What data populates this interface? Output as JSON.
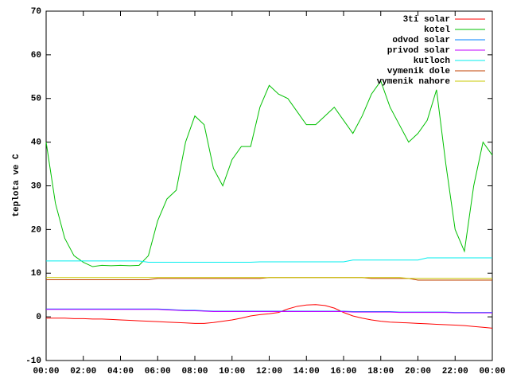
{
  "chart_data": {
    "type": "line",
    "ylabel": "teplota ve C",
    "x": [
      0,
      0.5,
      1,
      1.5,
      2,
      2.5,
      3,
      3.5,
      4,
      4.5,
      5,
      5.5,
      6,
      6.5,
      7,
      7.5,
      8,
      8.5,
      9,
      9.5,
      10,
      10.5,
      11,
      11.5,
      12,
      12.5,
      13,
      13.5,
      14,
      14.5,
      15,
      15.5,
      16,
      16.5,
      17,
      17.5,
      18,
      18.5,
      19,
      19.5,
      20,
      20.5,
      21,
      21.5,
      22,
      22.5,
      23,
      23.5,
      24
    ],
    "xlim": [
      0,
      24
    ],
    "xticks": [
      {
        "value": 0,
        "label": "00:00"
      },
      {
        "value": 2,
        "label": "02:00"
      },
      {
        "value": 4,
        "label": "04:00"
      },
      {
        "value": 6,
        "label": "06:00"
      },
      {
        "value": 8,
        "label": "08:00"
      },
      {
        "value": 10,
        "label": "10:00"
      },
      {
        "value": 12,
        "label": "12:00"
      },
      {
        "value": 14,
        "label": "14:00"
      },
      {
        "value": 16,
        "label": "16:00"
      },
      {
        "value": 18,
        "label": "18:00"
      },
      {
        "value": 20,
        "label": "20:00"
      },
      {
        "value": 22,
        "label": "22:00"
      },
      {
        "value": 24,
        "label": "00:00"
      }
    ],
    "ylim": [
      -10,
      70
    ],
    "yticks": [
      -10,
      0,
      10,
      20,
      30,
      40,
      50,
      60,
      70
    ],
    "legend": "top-right",
    "series": [
      {
        "name": "3ti solar",
        "color": "#ff0000",
        "values": [
          -0.3,
          -0.3,
          -0.3,
          -0.4,
          -0.4,
          -0.5,
          -0.5,
          -0.6,
          -0.7,
          -0.8,
          -0.9,
          -1.0,
          -1.1,
          -1.2,
          -1.3,
          -1.4,
          -1.5,
          -1.5,
          -1.3,
          -1.0,
          -0.7,
          -0.3,
          0.2,
          0.5,
          0.7,
          1.0,
          1.8,
          2.4,
          2.7,
          2.8,
          2.6,
          2.0,
          1.0,
          0.2,
          -0.3,
          -0.7,
          -1.0,
          -1.2,
          -1.3,
          -1.4,
          -1.5,
          -1.6,
          -1.7,
          -1.8,
          -1.9,
          -2.0,
          -2.2,
          -2.4,
          -2.6
        ]
      },
      {
        "name": "kotel",
        "color": "#00c000",
        "values": [
          40,
          26,
          18,
          14,
          12.5,
          11.5,
          11.8,
          11.7,
          11.8,
          11.7,
          11.8,
          14,
          22,
          27,
          29,
          40,
          46,
          44,
          34,
          30,
          36,
          39,
          39,
          48,
          53,
          51,
          50,
          47,
          44,
          44,
          46,
          48,
          45,
          42,
          46,
          51,
          54,
          48,
          44,
          40,
          42,
          45,
          52,
          35,
          20,
          15,
          30,
          40,
          37
        ]
      },
      {
        "name": "odvod solar",
        "color": "#0080ff",
        "values": [
          1.8,
          1.8,
          1.8,
          1.8,
          1.8,
          1.8,
          1.8,
          1.8,
          1.8,
          1.8,
          1.8,
          1.8,
          1.8,
          1.7,
          1.6,
          1.5,
          1.5,
          1.4,
          1.3,
          1.3,
          1.3,
          1.3,
          1.3,
          1.3,
          1.3,
          1.3,
          1.3,
          1.3,
          1.3,
          1.3,
          1.3,
          1.3,
          1.3,
          1.2,
          1.2,
          1.2,
          1.2,
          1.2,
          1.1,
          1.1,
          1.1,
          1.1,
          1.1,
          1.1,
          1.0,
          1.0,
          1.0,
          1.0,
          1.0
        ]
      },
      {
        "name": "privod solar",
        "color": "#c000ff",
        "values": [
          1.7,
          1.7,
          1.7,
          1.7,
          1.7,
          1.7,
          1.7,
          1.7,
          1.7,
          1.7,
          1.7,
          1.7,
          1.7,
          1.6,
          1.5,
          1.4,
          1.4,
          1.3,
          1.2,
          1.2,
          1.2,
          1.2,
          1.2,
          1.2,
          1.2,
          1.2,
          1.2,
          1.2,
          1.2,
          1.2,
          1.2,
          1.2,
          1.2,
          1.1,
          1.1,
          1.1,
          1.1,
          1.1,
          1.0,
          1.0,
          1.0,
          1.0,
          1.0,
          1.0,
          0.9,
          0.9,
          0.9,
          0.9,
          0.9
        ]
      },
      {
        "name": "kutloch",
        "color": "#00eeee",
        "values": [
          12.8,
          12.8,
          12.8,
          12.8,
          12.8,
          12.8,
          12.8,
          12.8,
          12.8,
          12.8,
          12.8,
          12.5,
          12.5,
          12.5,
          12.5,
          12.5,
          12.5,
          12.5,
          12.5,
          12.5,
          12.5,
          12.5,
          12.5,
          12.6,
          12.6,
          12.6,
          12.6,
          12.6,
          12.6,
          12.6,
          12.6,
          12.6,
          12.6,
          13.0,
          13.0,
          13.0,
          13.0,
          13.0,
          13.0,
          13.0,
          13.0,
          13.5,
          13.5,
          13.5,
          13.5,
          13.5,
          13.5,
          13.5,
          13.5
        ]
      },
      {
        "name": "vymenik dole",
        "color": "#c04000",
        "values": [
          8.5,
          8.5,
          8.5,
          8.5,
          8.5,
          8.5,
          8.5,
          8.5,
          8.5,
          8.5,
          8.5,
          8.5,
          8.8,
          8.8,
          8.8,
          8.8,
          8.8,
          8.8,
          8.8,
          8.8,
          8.8,
          8.8,
          8.8,
          8.8,
          9.0,
          9.0,
          9.0,
          9.0,
          9.0,
          9.0,
          9.0,
          9.0,
          9.0,
          9.0,
          9.0,
          8.8,
          8.8,
          8.8,
          8.8,
          8.8,
          8.4,
          8.4,
          8.4,
          8.4,
          8.4,
          8.4,
          8.4,
          8.4,
          8.4
        ]
      },
      {
        "name": "vymenik nahore",
        "color": "#c8c800",
        "values": [
          9.0,
          9.0,
          9.0,
          9.0,
          9.0,
          9.0,
          9.0,
          9.0,
          9.0,
          9.0,
          9.0,
          9.0,
          9.0,
          9.0,
          9.0,
          9.0,
          9.0,
          9.0,
          9.0,
          9.0,
          9.0,
          9.0,
          9.0,
          9.0,
          9.0,
          9.0,
          9.0,
          9.0,
          9.0,
          9.0,
          9.0,
          9.0,
          9.0,
          9.0,
          9.0,
          9.0,
          9.0,
          9.0,
          9.0,
          8.8,
          8.8,
          8.8,
          8.8,
          8.8,
          8.8,
          8.8,
          8.8,
          8.8,
          8.8
        ]
      }
    ]
  }
}
